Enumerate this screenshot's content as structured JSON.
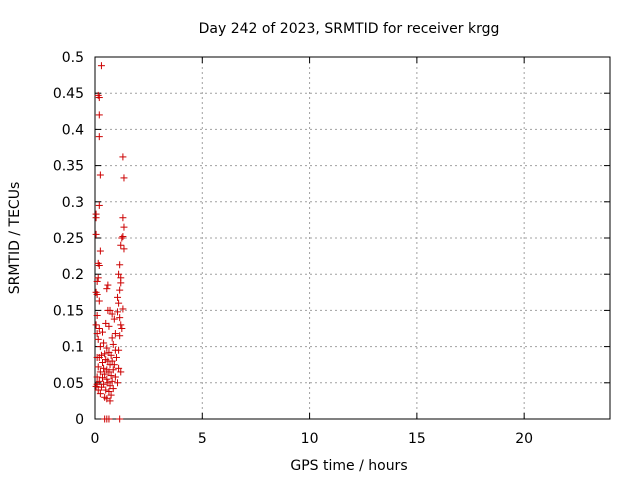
{
  "chart_data": {
    "type": "scatter",
    "title": "Day 242 of 2023, SRMTID for receiver krgg",
    "xlabel": "GPS time / hours",
    "ylabel": "SRMTID / TECUs",
    "xlim": [
      0,
      24
    ],
    "ylim": [
      0,
      0.5
    ],
    "xticks": [
      0,
      5,
      10,
      15,
      20
    ],
    "xtick_labels": [
      "0",
      "5",
      "10",
      "15",
      "20"
    ],
    "yticks": [
      0,
      0.05,
      0.1,
      0.15,
      0.2,
      0.25,
      0.3,
      0.35,
      0.4,
      0.45,
      0.5
    ],
    "ytick_labels": [
      "0",
      "0.05",
      "0.1",
      "0.15",
      "0.2",
      "0.25",
      "0.3",
      "0.35",
      "0.4",
      "0.45",
      "0.5"
    ],
    "grid": true,
    "marker": "+",
    "color": "#cc0000",
    "series": [
      {
        "name": "krgg",
        "points": [
          [
            0.3,
            0.488
          ],
          [
            0.15,
            0.447
          ],
          [
            0.2,
            0.444
          ],
          [
            0.2,
            0.42
          ],
          [
            0.2,
            0.39
          ],
          [
            1.3,
            0.362
          ],
          [
            0.25,
            0.337
          ],
          [
            1.35,
            0.333
          ],
          [
            0.2,
            0.295
          ],
          [
            0.05,
            0.283
          ],
          [
            0.05,
            0.278
          ],
          [
            1.3,
            0.278
          ],
          [
            1.35,
            0.265
          ],
          [
            0.05,
            0.255
          ],
          [
            1.3,
            0.252
          ],
          [
            1.25,
            0.25
          ],
          [
            1.2,
            0.24
          ],
          [
            1.35,
            0.235
          ],
          [
            0.25,
            0.232
          ],
          [
            0.15,
            0.215
          ],
          [
            0.2,
            0.212
          ],
          [
            1.15,
            0.213
          ],
          [
            1.1,
            0.2
          ],
          [
            1.2,
            0.195
          ],
          [
            0.15,
            0.195
          ],
          [
            0.1,
            0.19
          ],
          [
            1.2,
            0.188
          ],
          [
            0.6,
            0.185
          ],
          [
            0.55,
            0.18
          ],
          [
            1.15,
            0.178
          ],
          [
            0.05,
            0.175
          ],
          [
            0.1,
            0.172
          ],
          [
            1.05,
            0.168
          ],
          [
            0.2,
            0.163
          ],
          [
            1.1,
            0.16
          ],
          [
            0.6,
            0.15
          ],
          [
            0.7,
            0.15
          ],
          [
            0.8,
            0.145
          ],
          [
            1.05,
            0.148
          ],
          [
            1.3,
            0.152
          ],
          [
            0.1,
            0.143
          ],
          [
            1.15,
            0.14
          ],
          [
            0.9,
            0.138
          ],
          [
            0.05,
            0.13
          ],
          [
            0.5,
            0.132
          ],
          [
            0.65,
            0.128
          ],
          [
            1.2,
            0.13
          ],
          [
            1.25,
            0.125
          ],
          [
            0.2,
            0.125
          ],
          [
            0.35,
            0.12
          ],
          [
            0.1,
            0.118
          ],
          [
            0.95,
            0.118
          ],
          [
            1.15,
            0.115
          ],
          [
            0.8,
            0.112
          ],
          [
            0.15,
            0.11
          ],
          [
            0.4,
            0.105
          ],
          [
            0.85,
            0.103
          ],
          [
            0.25,
            0.1
          ],
          [
            0.55,
            0.098
          ],
          [
            1.1,
            0.095
          ],
          [
            0.65,
            0.092
          ],
          [
            0.95,
            0.095
          ],
          [
            0.45,
            0.09
          ],
          [
            0.3,
            0.088
          ],
          [
            0.75,
            0.088
          ],
          [
            0.1,
            0.085
          ],
          [
            0.2,
            0.085
          ],
          [
            1.0,
            0.085
          ],
          [
            0.5,
            0.082
          ],
          [
            0.6,
            0.08
          ],
          [
            0.8,
            0.08
          ],
          [
            0.35,
            0.078
          ],
          [
            0.7,
            0.075
          ],
          [
            0.9,
            0.075
          ],
          [
            0.15,
            0.072
          ],
          [
            0.4,
            0.07
          ],
          [
            1.1,
            0.07
          ],
          [
            0.55,
            0.068
          ],
          [
            0.85,
            0.068
          ],
          [
            0.25,
            0.065
          ],
          [
            0.65,
            0.065
          ],
          [
            1.2,
            0.065
          ],
          [
            0.45,
            0.062
          ],
          [
            0.75,
            0.06
          ],
          [
            0.1,
            0.058
          ],
          [
            0.35,
            0.057
          ],
          [
            0.95,
            0.058
          ],
          [
            0.55,
            0.055
          ],
          [
            0.2,
            0.052
          ],
          [
            0.8,
            0.052
          ],
          [
            0.6,
            0.05
          ],
          [
            0.1,
            0.048
          ],
          [
            0.4,
            0.048
          ],
          [
            1.05,
            0.05
          ],
          [
            0.7,
            0.046
          ],
          [
            0.05,
            0.045
          ],
          [
            0.3,
            0.044
          ],
          [
            0.85,
            0.042
          ],
          [
            0.5,
            0.04
          ],
          [
            0.15,
            0.04
          ],
          [
            0.65,
            0.038
          ],
          [
            0.25,
            0.035
          ],
          [
            0.75,
            0.033
          ],
          [
            0.45,
            0.03
          ],
          [
            0.55,
            0.028
          ],
          [
            0.7,
            0.025
          ],
          [
            0.45,
            0.0
          ],
          [
            0.55,
            0.0
          ],
          [
            0.65,
            0.0
          ],
          [
            1.15,
            0.0
          ]
        ]
      }
    ]
  }
}
